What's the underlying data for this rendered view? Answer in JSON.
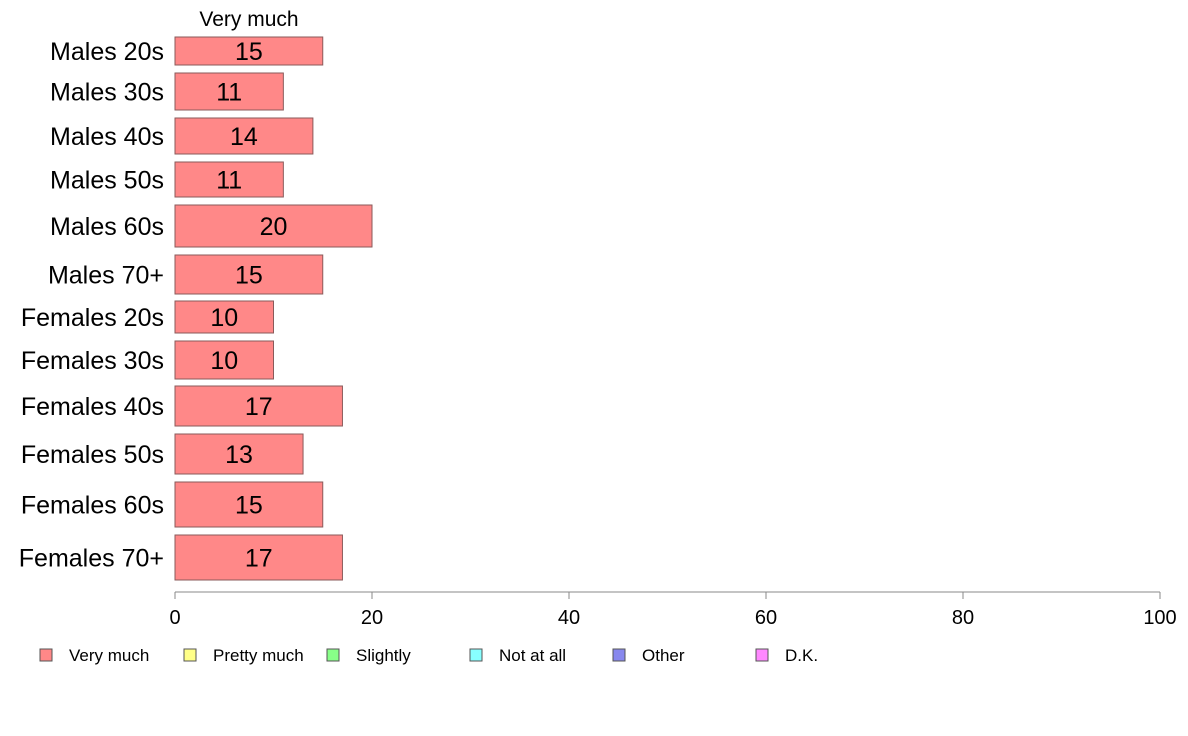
{
  "chart_data": {
    "type": "bar",
    "orientation": "horizontal",
    "series_header": "Very much",
    "categories": [
      "Males 20s",
      "Males 30s",
      "Males 40s",
      "Males 50s",
      "Males 60s",
      "Males 70+",
      "Females 20s",
      "Females 30s",
      "Females 40s",
      "Females 50s",
      "Females 60s",
      "Females 70+"
    ],
    "series": [
      {
        "name": "Very much",
        "color": "#ff8888",
        "values": [
          15,
          11,
          14,
          11,
          20,
          15,
          10,
          10,
          17,
          13,
          15,
          17
        ],
        "labels": [
          "15",
          "11",
          "14",
          "11",
          "20",
          "15",
          "10",
          "10",
          "17",
          "13",
          "15",
          "17"
        ]
      }
    ],
    "xlim": [
      0,
      100
    ],
    "xticks": [
      "0",
      "20",
      "40",
      "60",
      "80",
      "100"
    ],
    "grid": false,
    "legend_position": "bottom",
    "legend": [
      {
        "label": "Very much",
        "color": "#ff8888"
      },
      {
        "label": "Pretty much",
        "color": "#ffff88"
      },
      {
        "label": "Slightly",
        "color": "#88ff88"
      },
      {
        "label": "Not at all",
        "color": "#88ffff"
      },
      {
        "label": "Other",
        "color": "#8888ee"
      },
      {
        "label": "D.K.",
        "color": "#ff88ff"
      }
    ]
  }
}
